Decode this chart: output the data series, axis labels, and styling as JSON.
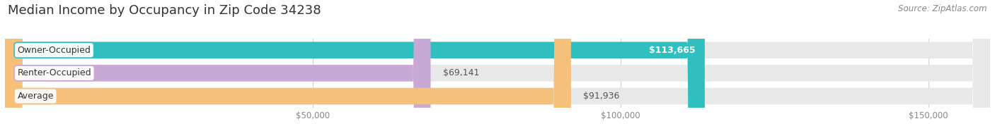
{
  "title": "Median Income by Occupancy in Zip Code 34238",
  "source": "Source: ZipAtlas.com",
  "categories": [
    "Owner-Occupied",
    "Renter-Occupied",
    "Average"
  ],
  "values": [
    113665,
    69141,
    91936
  ],
  "bar_colors": [
    "#2fbfbf",
    "#c8a8d4",
    "#f5c07a"
  ],
  "bar_bg_color": "#e8e8e8",
  "value_labels": [
    "$113,665",
    "$69,141",
    "$91,936"
  ],
  "value_inside": [
    true,
    false,
    false
  ],
  "tick_labels": [
    "$50,000",
    "$100,000",
    "$150,000"
  ],
  "tick_values": [
    50000,
    100000,
    150000
  ],
  "xlim_max": 160000,
  "title_fontsize": 13,
  "source_fontsize": 8.5,
  "bar_label_fontsize": 9,
  "value_fontsize": 9,
  "tick_fontsize": 8.5,
  "background_color": "#ffffff",
  "bar_sep_color": "#ffffff",
  "grid_color": "#d0d0d0"
}
